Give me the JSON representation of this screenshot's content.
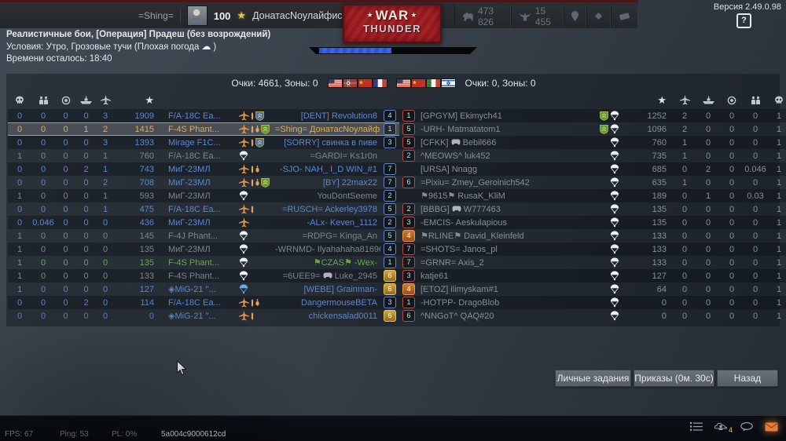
{
  "top_bar": {
    "squad_tag": "=Shing=",
    "level": "100",
    "player_name": "ДонатасNоулайфис",
    "currencies": [
      {
        "icon": "silver-lion-icon",
        "value": "473 826"
      },
      {
        "icon": "golden-eagle-icon",
        "value": "15 455"
      }
    ],
    "misc_icons": [
      "map-pin-icon",
      "premium-diamond-icon",
      "battle-pass-icon"
    ],
    "version": "Версия 2.49.0.98",
    "help": "?"
  },
  "logo": {
    "star": "★",
    "line1": "WAR",
    "line2": "THUNDER"
  },
  "mission": {
    "title": "Реалистичные бои, [Операция] Прадеш (без возрождений)",
    "conditions_prefix": "Условия: Утро, Грозовые тучи  (Плохая погода",
    "weather_icon": "storm-cloud-icon",
    "conditions_suffix": ")",
    "time_left": "Времени осталось: 18:40",
    "progress_percent": 43
  },
  "scoreboard": {
    "left_score": "Очки: 4661, Зоны: 0",
    "right_score": "Очки: 0, Зоны: 0",
    "left_flags": [
      "usa",
      "germany-ww2",
      "ussr",
      "france"
    ],
    "right_flags": [
      "usa",
      "ussr",
      "italy",
      "israel"
    ],
    "column_names": [
      "deaths",
      "infantry",
      "ground",
      "naval",
      "air"
    ],
    "left_column_icons": [
      "skull-icon",
      "infantry-icon",
      "ground-icon",
      "naval-icon",
      "aircraft-icon",
      "score-star-icon"
    ],
    "right_column_icons": [
      "score-star-icon",
      "aircraft-icon",
      "naval-icon",
      "ground-icon",
      "infantry-icon",
      "skull-icon"
    ],
    "left_rows": [
      {
        "vals": [
          "0",
          "0",
          "0",
          "0",
          "3"
        ],
        "score": "1909",
        "vehicle": "F/A-18C Ea...",
        "st": "plane",
        "ord": 1,
        "shield": "blue",
        "name": "[DENT] Revolution8",
        "badge": "4",
        "bstyle": "blue",
        "state": "alive"
      },
      {
        "vals": [
          "0",
          "0",
          "0",
          "1",
          "2"
        ],
        "score": "1415",
        "vehicle": "F-4S Phant...",
        "st": "plane",
        "ord": 2,
        "shield": "green",
        "name": "=Shing= ДонатасNоулайфис",
        "badge": "1",
        "bstyle": "blue",
        "state": "self"
      },
      {
        "vals": [
          "0",
          "0",
          "0",
          "0",
          "3"
        ],
        "score": "1393",
        "vehicle": "Mirage F1C...",
        "st": "plane",
        "ord": 1,
        "shield": "blue",
        "name": "[SORRY] свинка в пиве",
        "badge": "3",
        "bstyle": "blue",
        "state": "alive"
      },
      {
        "vals": [
          "1",
          "0",
          "0",
          "0",
          "1"
        ],
        "score": "760",
        "vehicle": "F/A-18C Ea...",
        "st": "chute",
        "ord": 0,
        "shield": null,
        "name": "=GARDI= Ks1r0n",
        "badge": null,
        "bstyle": null,
        "state": "dead"
      },
      {
        "vals": [
          "0",
          "0",
          "0",
          "2",
          "1"
        ],
        "score": "743",
        "vehicle": "МиГ-23МЛ",
        "st": "plane",
        "ord": 2,
        "shield": null,
        "name": "-SJO- NAH_ I_D WIN_#1",
        "badge": "7",
        "bstyle": "blue",
        "state": "alive"
      },
      {
        "vals": [
          "0",
          "0",
          "0",
          "0",
          "2"
        ],
        "score": "708",
        "vehicle": "МиГ-23МЛ",
        "st": "plane",
        "ord": 2,
        "shield": "green",
        "name": "[BY] 22max22",
        "badge": "7",
        "bstyle": "blue",
        "state": "alive"
      },
      {
        "vals": [
          "1",
          "0",
          "0",
          "0",
          "1"
        ],
        "score": "593",
        "vehicle": "МиГ-23МЛ",
        "st": "chute",
        "ord": 0,
        "shield": null,
        "name": "YouDontSeeme",
        "badge": "2",
        "bstyle": "blue",
        "state": "dead"
      },
      {
        "vals": [
          "0",
          "0",
          "0",
          "0",
          "1"
        ],
        "score": "475",
        "vehicle": "F/A-18C Ea...",
        "st": "plane",
        "ord": 1,
        "shield": null,
        "name": "=RUSCH= Ackerley3978",
        "badge": "5",
        "bstyle": "blue",
        "state": "alive"
      },
      {
        "vals": [
          "0",
          "0.046",
          "0",
          "0",
          "0"
        ],
        "score": "436",
        "vehicle": "МиГ-23МЛ",
        "st": "plane",
        "ord": 0,
        "shield": null,
        "name": "-ALx- Keven_1112",
        "badge": "2",
        "bstyle": "blue",
        "state": "alive"
      },
      {
        "vals": [
          "1",
          "0",
          "0",
          "0",
          "0"
        ],
        "score": "145",
        "vehicle": "F-4J Phant...",
        "st": "chute",
        "ord": 0,
        "shield": null,
        "name": "=RDPG= Kinga_An",
        "badge": "5",
        "bstyle": "blue",
        "state": "dead"
      },
      {
        "vals": [
          "1",
          "0",
          "0",
          "0",
          "0"
        ],
        "score": "135",
        "vehicle": "МиГ-23МЛ",
        "st": "chute",
        "ord": 0,
        "shield": null,
        "name": "-WRNMD- Ilyahahaha81696",
        "badge": "4",
        "bstyle": "blue",
        "state": "dead"
      },
      {
        "vals": [
          "1",
          "0",
          "0",
          "0",
          "0"
        ],
        "score": "135",
        "vehicle": "F-4S Phant...",
        "st": "chute",
        "ord": 0,
        "shield": null,
        "name": "⚑CZAS⚑ -Wex-",
        "badge": "1",
        "bstyle": "blue",
        "state": "squad"
      },
      {
        "vals": [
          "1",
          "0",
          "0",
          "0",
          "0"
        ],
        "score": "133",
        "vehicle": "F-4S Phant...",
        "st": "chute",
        "ord": 0,
        "shield": null,
        "name_parts": [
          "=6UEE9=",
          "Luke_2945"
        ],
        "controller": true,
        "badge": "6",
        "bstyle": "gold",
        "state": "dead"
      },
      {
        "vals": [
          "1",
          "0",
          "0",
          "0",
          "0"
        ],
        "score": "127",
        "vehicle": "◈MiG-21 \"...",
        "st": "chute-blue",
        "ord": 0,
        "shield": null,
        "name": "[WEBE] Grainman-",
        "badge": "6",
        "bstyle": "gold",
        "state": "alive"
      },
      {
        "vals": [
          "0",
          "0",
          "0",
          "2",
          "0"
        ],
        "score": "114",
        "vehicle": "F/A-18C Ea...",
        "st": "plane",
        "ord": 2,
        "shield": null,
        "name": "DangermouseBETA",
        "badge": "3",
        "bstyle": "blue",
        "state": "alive"
      },
      {
        "vals": [
          "0",
          "0",
          "0",
          "0",
          "0"
        ],
        "score": "0",
        "vehicle": "◈MiG-21 \"...",
        "st": "plane",
        "ord": 1,
        "shield": null,
        "name": "chickensalad0011",
        "badge": "6",
        "bstyle": "gold",
        "state": "alive"
      }
    ],
    "right_rows": [
      {
        "badge": "1",
        "bstyle": "red",
        "name": "[GPGYM] Ekimych41",
        "shield": "green",
        "st": "chute",
        "score": "1252",
        "vals": [
          "2",
          "0",
          "0",
          "0",
          "1"
        ]
      },
      {
        "badge": "5",
        "bstyle": "red",
        "name": "-URH- Matmatatom1",
        "shield": "green",
        "st": "chute",
        "score": "1096",
        "vals": [
          "2",
          "0",
          "0",
          "0",
          "1"
        ]
      },
      {
        "badge": "5",
        "bstyle": "red",
        "name_parts": [
          "[CFKK]",
          "Bebil666"
        ],
        "controller": true,
        "shield": null,
        "st": "chute",
        "score": "760",
        "vals": [
          "1",
          "0",
          "0",
          "0",
          "1"
        ]
      },
      {
        "badge": "2",
        "bstyle": "red",
        "name": "^MEOWS^ luk452",
        "shield": null,
        "st": "chute",
        "score": "735",
        "vals": [
          "1",
          "0",
          "0",
          "0",
          "1"
        ]
      },
      {
        "badge": null,
        "bstyle": null,
        "name": "[URSA] Nnagg",
        "shield": null,
        "st": "chute",
        "score": "685",
        "vals": [
          "0",
          "2",
          "0",
          "0.046",
          "1"
        ]
      },
      {
        "badge": "6",
        "bstyle": "red",
        "name": "=Pixiu= Zmey_Geroinich542",
        "shield": null,
        "st": "chute",
        "score": "635",
        "vals": [
          "1",
          "0",
          "0",
          "0",
          "1"
        ]
      },
      {
        "badge": null,
        "bstyle": null,
        "name": "⚑9615⚑ RusaK_KliM",
        "shield": null,
        "st": "chute",
        "score": "189",
        "vals": [
          "0",
          "1",
          "0",
          "0.03",
          "1"
        ]
      },
      {
        "badge": "2",
        "bstyle": "red",
        "name_parts": [
          "[BBBG]",
          "W777463"
        ],
        "controller": true,
        "shield": null,
        "st": "chute",
        "score": "135",
        "vals": [
          "0",
          "0",
          "0",
          "0",
          "1"
        ]
      },
      {
        "badge": "3",
        "bstyle": "red",
        "name": "-EMCIS- Aeskulapious",
        "shield": null,
        "st": "chute",
        "score": "135",
        "vals": [
          "0",
          "0",
          "0",
          "0",
          "1"
        ]
      },
      {
        "badge": "4",
        "bstyle": "orange",
        "name": "⚑RLINE⚑ David_Kleinfeld",
        "shield": null,
        "st": "chute",
        "score": "133",
        "vals": [
          "0",
          "0",
          "0",
          "0",
          "1"
        ]
      },
      {
        "badge": "7",
        "bstyle": "red",
        "name": "=SHOTS= Janos_pl",
        "shield": null,
        "st": "chute",
        "score": "133",
        "vals": [
          "0",
          "0",
          "0",
          "0",
          "1"
        ]
      },
      {
        "badge": "7",
        "bstyle": "red",
        "name": "=GRNR= Axis_2",
        "shield": null,
        "st": "chute",
        "score": "133",
        "vals": [
          "0",
          "0",
          "0",
          "0",
          "1"
        ]
      },
      {
        "badge": "3",
        "bstyle": "red",
        "name": "katje61",
        "shield": null,
        "st": "chute",
        "score": "127",
        "vals": [
          "0",
          "0",
          "0",
          "0",
          "1"
        ]
      },
      {
        "badge": "4",
        "bstyle": "orange",
        "name": "[ETOZ] ilimyskam#1",
        "shield": null,
        "st": "chute",
        "score": "64",
        "vals": [
          "0",
          "0",
          "0",
          "0",
          "1"
        ]
      },
      {
        "badge": "1",
        "bstyle": "red",
        "name": "-HOTPP- DragoBlob",
        "shield": null,
        "st": "chute",
        "score": "0",
        "vals": [
          "0",
          "0",
          "0",
          "0",
          "1"
        ]
      },
      {
        "badge": "6",
        "bstyle": "red",
        "name": "^NNGoT^ QAQ#20",
        "shield": null,
        "st": "chute",
        "score": "0",
        "vals": [
          "0",
          "0",
          "0",
          "0",
          "1"
        ]
      }
    ]
  },
  "buttons": [
    {
      "label": "Личные задания"
    },
    {
      "label": "Приказы (0м. 30с)"
    },
    {
      "label": "Назад"
    }
  ],
  "status_bar": {
    "fps": "FPS: 67",
    "ping": "Ping: 53",
    "pl": "PL: 0%",
    "session_id": "5a004c9000612cd"
  },
  "bottom_icons": [
    {
      "name": "battle-log-icon"
    },
    {
      "name": "squad-members-icon",
      "badge": "4"
    },
    {
      "name": "chat-icon"
    },
    {
      "name": "mail-icon",
      "highlight": true
    }
  ]
}
